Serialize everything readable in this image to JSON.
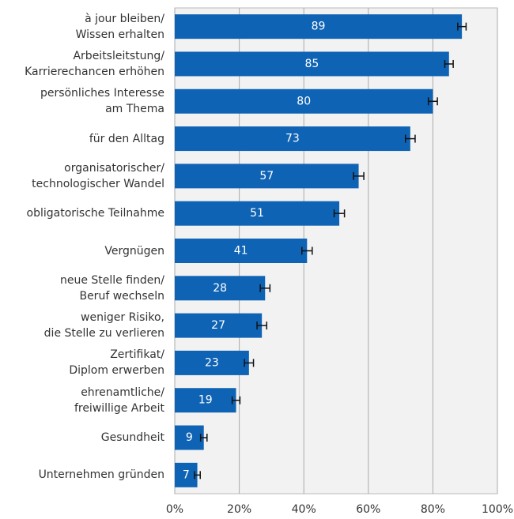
{
  "chart_data": {
    "type": "barh",
    "categories": [
      "à jour bleiben/\nWissen erhalten",
      "Arbeitsleitstung/\nKarrierechancen erhöhen",
      "persönliches Interesse\nam Thema",
      "für den Alltag",
      "organisatorischer/\ntechnologischer Wandel",
      "obligatorische Teilnahme",
      "Vergnügen",
      "neue Stelle finden/\nBeruf wechseln",
      "weniger Risiko,\ndie Stelle zu verlieren",
      "Zertifikat/\nDiplom erwerben",
      "ehrenamtliche/\nfreiwillige Arbeit",
      "Gesundheit",
      "Unternehmen gründen"
    ],
    "values": [
      89,
      85,
      80,
      73,
      57,
      51,
      41,
      28,
      27,
      23,
      19,
      9,
      7
    ],
    "errors": [
      1.3,
      1.3,
      1.4,
      1.5,
      1.6,
      1.6,
      1.6,
      1.5,
      1.5,
      1.4,
      1.2,
      1.0,
      0.9
    ],
    "color": "#0f63b4",
    "xlim": [
      0,
      100
    ],
    "xticks": [
      {
        "value": 0,
        "label": "0%"
      },
      {
        "value": 20,
        "label": "20%"
      },
      {
        "value": 40,
        "label": "40%"
      },
      {
        "value": 60,
        "label": "60%"
      },
      {
        "value": 80,
        "label": "80%"
      },
      {
        "value": 100,
        "label": "100%"
      }
    ],
    "grid": true
  }
}
